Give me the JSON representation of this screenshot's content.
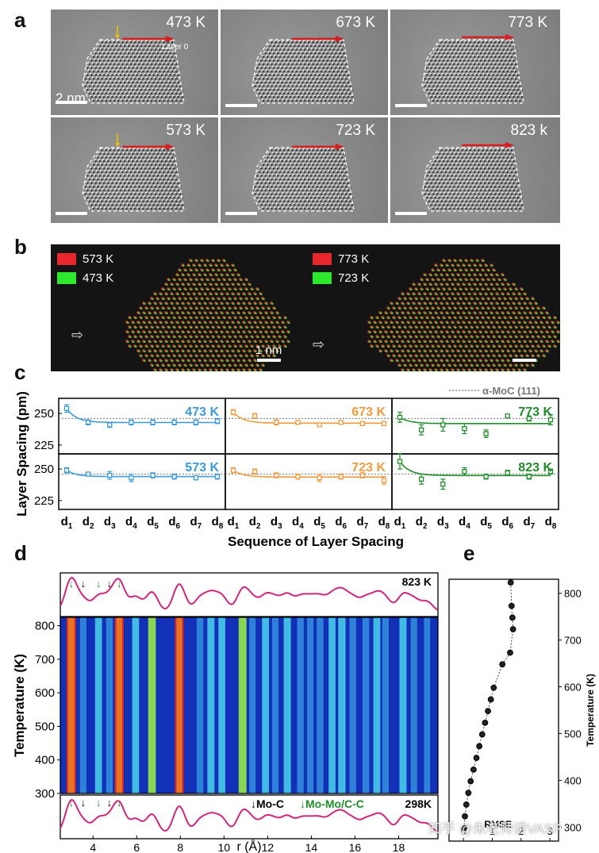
{
  "panel_labels": {
    "a": "a",
    "b": "b",
    "c": "c",
    "d": "d",
    "e": "e"
  },
  "panel_a": {
    "images": [
      {
        "temperature": "473 K",
        "annotation": "Layer 0",
        "scalebar": "2 nm"
      },
      {
        "temperature": "673 K"
      },
      {
        "temperature": "773 K"
      },
      {
        "temperature": "573 K"
      },
      {
        "temperature": "723 K"
      },
      {
        "temperature": "823 k"
      }
    ]
  },
  "panel_b": {
    "left": {
      "legend": [
        {
          "label": "573 K",
          "color": "#e8262b"
        },
        {
          "label": "473 K",
          "color": "#2ee82e"
        }
      ],
      "scalebar": "1 nm"
    },
    "right": {
      "legend": [
        {
          "label": "773 K",
          "color": "#e8262b"
        },
        {
          "label": "723 K",
          "color": "#2ee82e"
        }
      ]
    }
  },
  "chart_data": [
    {
      "id": "c",
      "type": "scatter",
      "ylabel": "Layer Spacing (pm)",
      "xlabel": "Sequence of Layer Spacing",
      "categories": [
        "d1",
        "d2",
        "d3",
        "d4",
        "d5",
        "d6",
        "d7",
        "d8"
      ],
      "category_base": "d",
      "category_subs": [
        "1",
        "2",
        "3",
        "4",
        "5",
        "6",
        "7",
        "8"
      ],
      "yticks": [
        225,
        250
      ],
      "ylim": [
        218,
        262
      ],
      "reference_line": {
        "label": "α-MoC (111)",
        "value": 246
      },
      "subplots": [
        {
          "label": "473 K",
          "color": "#3b9ad8",
          "values": [
            254,
            243,
            241,
            243,
            243,
            243,
            243,
            244
          ],
          "errors": [
            3,
            2,
            2,
            2,
            2,
            2,
            2,
            2
          ]
        },
        {
          "label": "673 K",
          "color": "#f09a3e",
          "values": [
            251,
            248,
            243,
            243,
            241,
            243,
            242,
            242
          ],
          "errors": [
            2,
            2,
            2,
            1,
            1,
            1,
            1,
            1
          ]
        },
        {
          "label": "773 K",
          "color": "#1f8e2a",
          "values": [
            247,
            237,
            241,
            238,
            234,
            248,
            246,
            245
          ],
          "errors": [
            4,
            4,
            5,
            4,
            3,
            1,
            2,
            4
          ]
        },
        {
          "label": "573 K",
          "color": "#3b9ad8",
          "values": [
            249,
            246,
            245,
            243,
            245,
            244,
            243,
            244
          ],
          "errors": [
            2,
            1,
            3,
            3,
            2,
            2,
            1,
            2
          ]
        },
        {
          "label": "723 K",
          "color": "#f09a3e",
          "values": [
            249,
            248,
            245,
            244,
            243,
            244,
            245,
            241
          ],
          "errors": [
            2,
            2,
            2,
            2,
            3,
            2,
            2,
            3
          ]
        },
        {
          "label": "823 K",
          "color": "#1f8e2a",
          "values": [
            256,
            242,
            238,
            248,
            244,
            247,
            244,
            248
          ],
          "errors": [
            6,
            4,
            4,
            3,
            2,
            2,
            2,
            2
          ]
        }
      ]
    },
    {
      "id": "d",
      "type": "heatmap",
      "xlabel": "r (Å)",
      "ylabel": "Temperature (K)",
      "xticks": [
        4,
        6,
        8,
        10,
        12,
        14,
        16,
        18
      ],
      "xlim": [
        2.5,
        19.8
      ],
      "yticks": [
        300,
        400,
        500,
        600,
        700,
        800
      ],
      "ylim": [
        300,
        825
      ],
      "top_curve_label": "823 K",
      "bottom_curve_label": "298K",
      "legend": {
        "mo_c": "↓Mo-C",
        "mo_mo": "↓Mo-Mo/C-C"
      },
      "peaks_r": [
        3.0,
        3.55,
        4.25,
        4.75,
        5.2,
        5.95,
        6.7,
        7.95,
        8.9,
        9.4,
        9.9,
        10.85,
        11.3,
        11.9,
        12.35,
        12.9,
        13.5,
        13.95,
        14.4,
        14.95,
        15.4,
        15.9,
        16.5,
        17.0,
        17.4,
        18.2,
        18.7,
        19.3
      ],
      "peak_heights": [
        1.0,
        0.35,
        0.45,
        0.38,
        0.9,
        0.45,
        0.6,
        0.85,
        0.4,
        0.5,
        0.45,
        0.65,
        0.35,
        0.45,
        0.35,
        0.5,
        0.4,
        0.35,
        0.4,
        0.45,
        0.55,
        0.4,
        0.4,
        0.45,
        0.35,
        0.5,
        0.35,
        0.3
      ]
    },
    {
      "id": "e",
      "type": "line",
      "xlabel": "RMSE",
      "ylabel": "Temperature (K)",
      "xlim": [
        -0.5,
        3.3
      ],
      "ylim": [
        270,
        830
      ],
      "xticks": [
        0,
        1,
        2,
        3
      ],
      "yticks": [
        300,
        400,
        500,
        600,
        700,
        800
      ],
      "x": [
        0.02,
        0.05,
        0.1,
        0.17,
        0.25,
        0.35,
        0.45,
        0.55,
        0.65,
        0.75,
        0.85,
        0.95,
        1.05,
        1.35,
        1.62,
        1.72,
        1.7,
        1.67,
        1.64
      ],
      "y": [
        298,
        323,
        348,
        373,
        398,
        423,
        448,
        473,
        498,
        523,
        548,
        573,
        598,
        648,
        673,
        723,
        748,
        773,
        823
      ]
    }
  ],
  "watermark": "知乎 @朱老师讲VASP"
}
